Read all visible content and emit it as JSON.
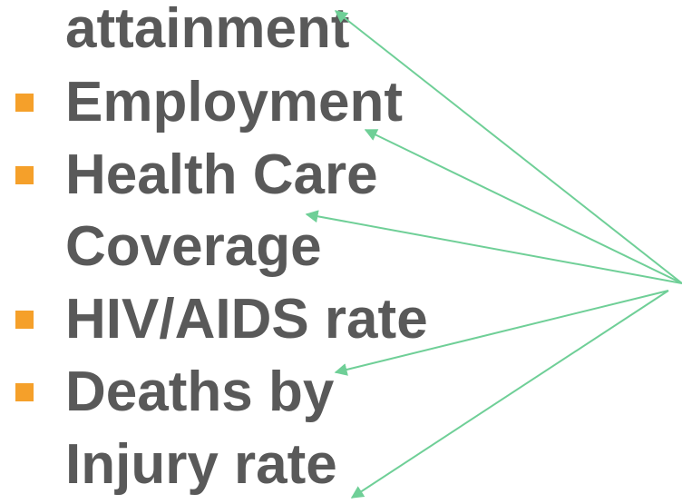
{
  "lines": [
    "attainment",
    "Employment",
    "Health Care",
    "Coverage",
    "HIV/AIDS rate",
    "Deaths by",
    "Injury rate"
  ]
}
